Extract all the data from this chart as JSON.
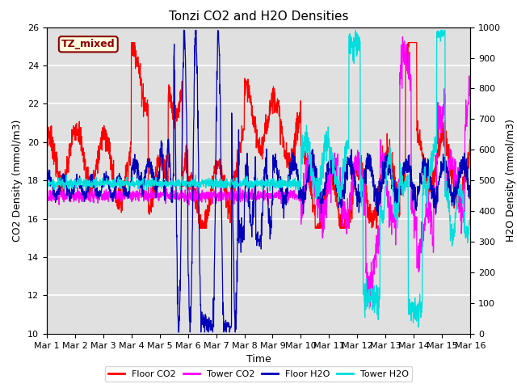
{
  "title": "Tonzi CO2 and H2O Densities",
  "xlabel": "Time",
  "ylabel_left": "CO2 Density (mmol/m3)",
  "ylabel_right": "H2O Density (mmol/m3)",
  "annotation": "TZ_mixed",
  "ylim_left": [
    10,
    26
  ],
  "ylim_right": [
    0,
    1000
  ],
  "yticks_left": [
    10,
    12,
    14,
    16,
    18,
    20,
    22,
    24,
    26
  ],
  "yticks_right": [
    0,
    100,
    200,
    300,
    400,
    500,
    600,
    700,
    800,
    900,
    1000
  ],
  "xtick_labels": [
    "Mar 1",
    "Mar 2",
    "Mar 3",
    "Mar 4",
    "Mar 5",
    "Mar 6",
    "Mar 7",
    "Mar 8",
    "Mar 9",
    "Mar 10",
    "Mar 11",
    "Mar 12",
    "Mar 13",
    "Mar 14",
    "Mar 15",
    "Mar 16"
  ],
  "colors": {
    "floor_co2": "#FF0000",
    "tower_co2": "#FF00FF",
    "floor_h2o": "#0000BB",
    "tower_h2o": "#00DDDD"
  },
  "legend_labels": [
    "Floor CO2",
    "Tower CO2",
    "Floor H2O",
    "Tower H2O"
  ],
  "background_color": "#E0E0E0",
  "grid_color": "#FFFFFF",
  "n_points": 2000
}
